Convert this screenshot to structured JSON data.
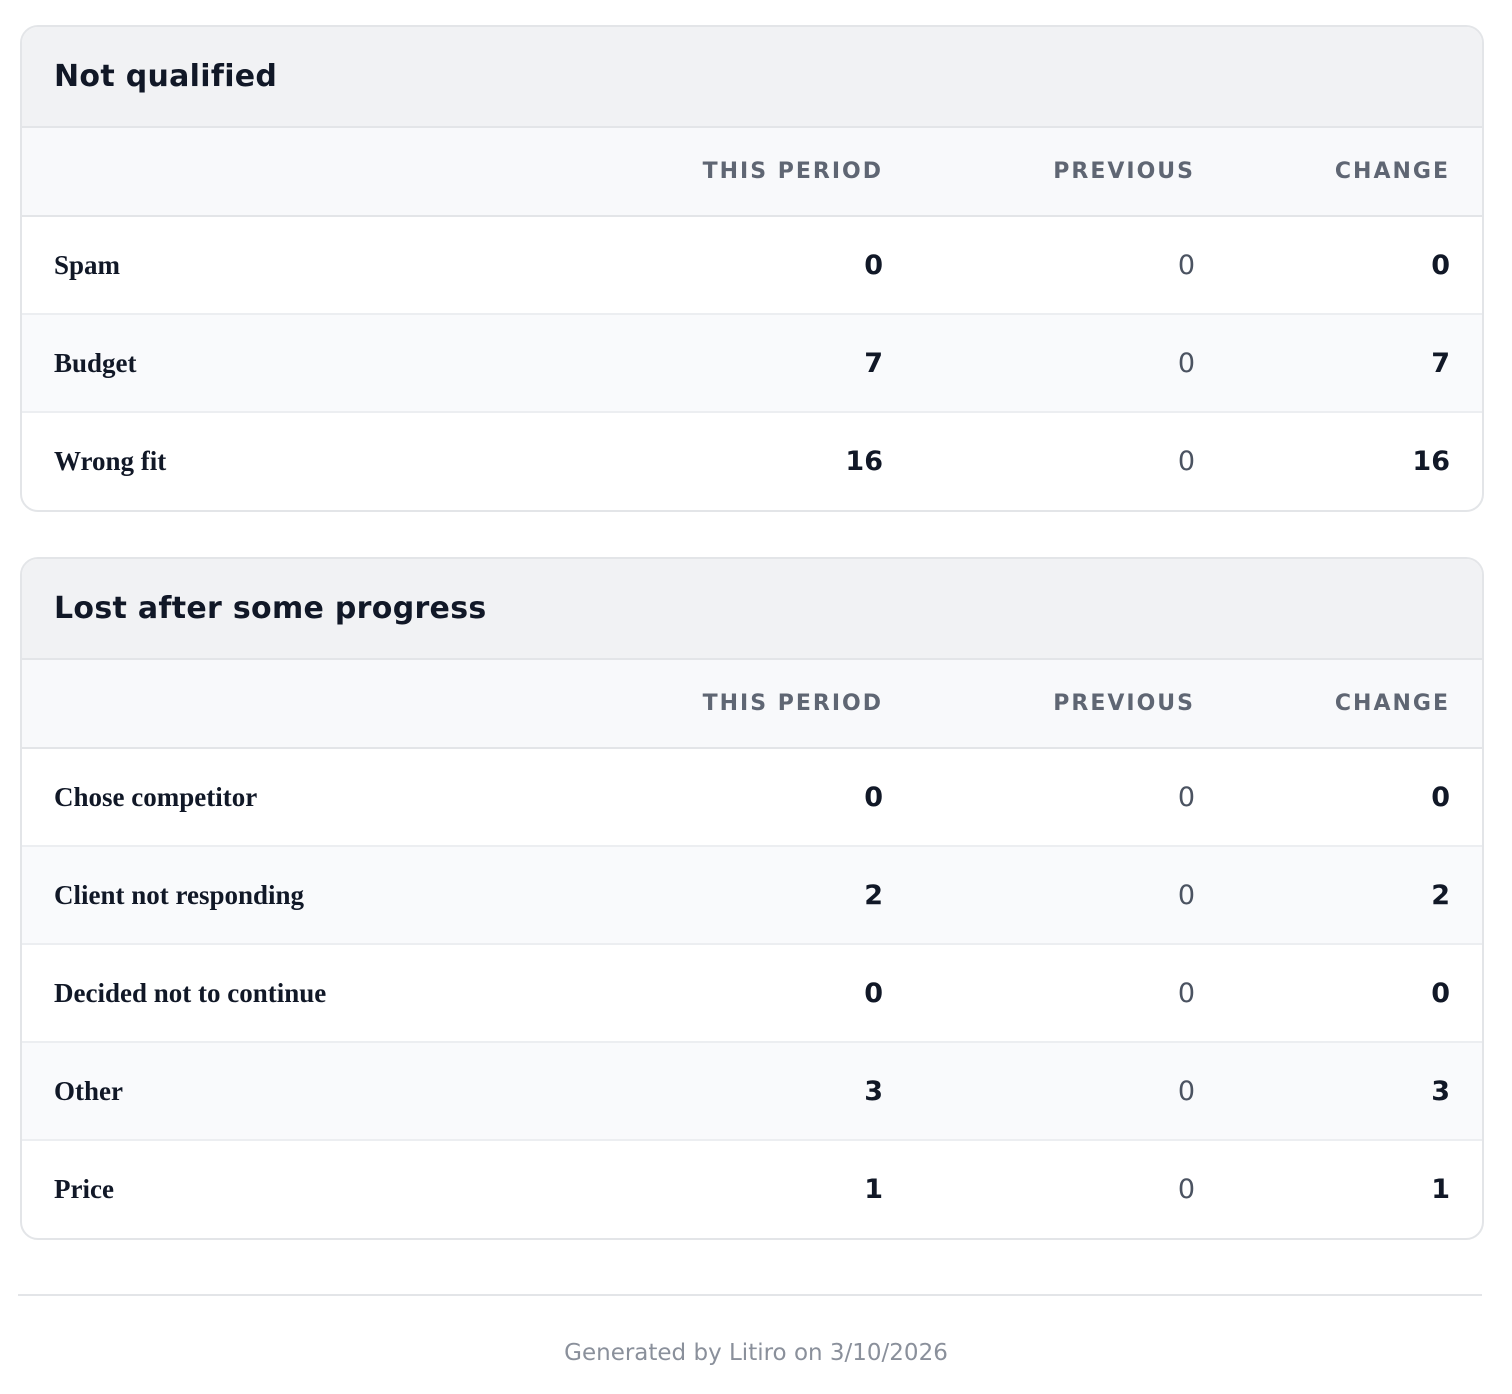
{
  "sections": [
    {
      "title": "Not qualified",
      "columns": [
        "THIS PERIOD",
        "PREVIOUS",
        "CHANGE"
      ],
      "rows": [
        {
          "label": "Spam",
          "this_period": "0",
          "previous": "0",
          "change": "0"
        },
        {
          "label": "Budget",
          "this_period": "7",
          "previous": "0",
          "change": "7"
        },
        {
          "label": "Wrong fit",
          "this_period": "16",
          "previous": "0",
          "change": "16"
        }
      ]
    },
    {
      "title": "Lost after some progress",
      "columns": [
        "THIS PERIOD",
        "PREVIOUS",
        "CHANGE"
      ],
      "rows": [
        {
          "label": "Chose competitor",
          "this_period": "0",
          "previous": "0",
          "change": "0"
        },
        {
          "label": "Client not responding",
          "this_period": "2",
          "previous": "0",
          "change": "2"
        },
        {
          "label": "Decided not to continue",
          "this_period": "0",
          "previous": "0",
          "change": "0"
        },
        {
          "label": "Other",
          "this_period": "3",
          "previous": "0",
          "change": "3"
        },
        {
          "label": "Price",
          "this_period": "1",
          "previous": "0",
          "change": "1"
        }
      ]
    }
  ],
  "footer": {
    "text": "Generated by Litiro on 3/10/2026"
  },
  "colors": {
    "header_background": "#f1f2f4",
    "column_header_text": "#5f6673",
    "border": "#e3e5e8",
    "footer_text": "#8a909b"
  }
}
